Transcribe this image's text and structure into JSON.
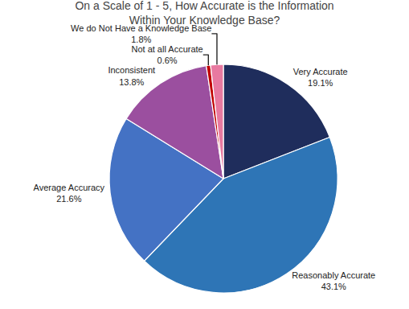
{
  "chart_data": {
    "type": "pie",
    "title": "On a Scale of 1 - 5, How Accurate is the Information\nWithin Your Knowledge Base?",
    "categories": [
      "Very Accurate",
      "Reasonably Accurate",
      "Average Accuracy",
      "Inconsistent",
      "Not at all Accurate",
      "We do Not Have a Knowledge Base"
    ],
    "values": [
      19.1,
      43.1,
      21.6,
      13.8,
      0.6,
      1.8
    ],
    "value_labels": [
      "19.1%",
      "43.1%",
      "21.6%",
      "13.8%",
      "0.6%",
      "1.8%"
    ],
    "colors": [
      "#1F2D5C",
      "#2E75B6",
      "#4472C4",
      "#9B4F9F",
      "#C00000",
      "#E879A0"
    ],
    "data_labels": true
  }
}
